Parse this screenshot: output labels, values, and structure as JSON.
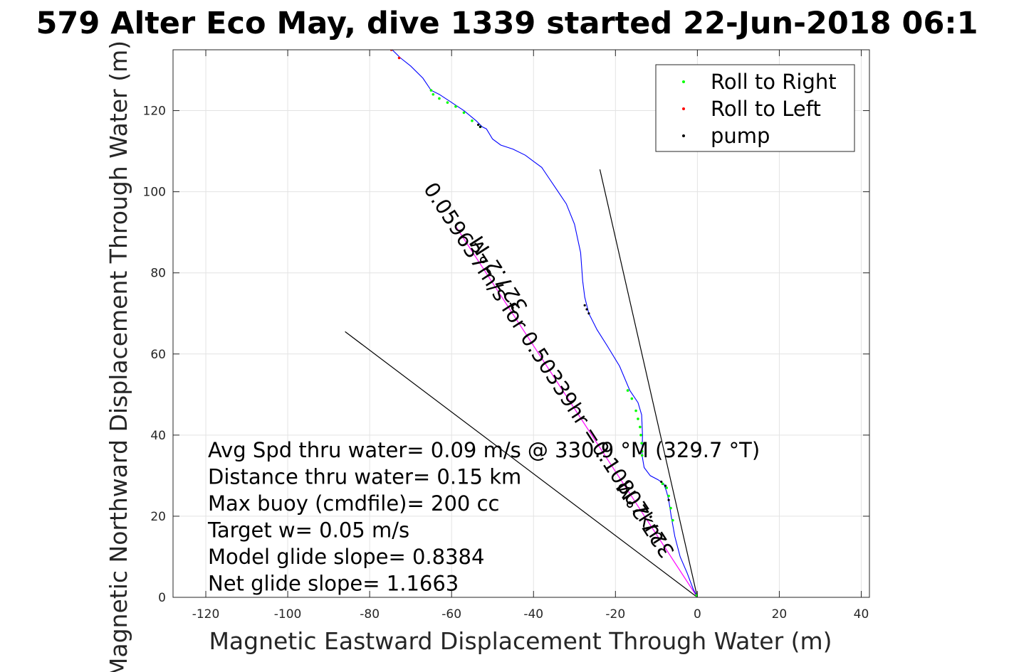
{
  "chart_data": {
    "type": "line",
    "title": "579 Alter Eco May, dive 1339 started 22-Jun-2018 06:1",
    "xlabel": "Magnetic Eastward Displacement Through Water (m)",
    "ylabel": "Magnetic Northward Displacement Through Water (m)",
    "xlim": [
      -128,
      42
    ],
    "ylim": [
      0,
      135
    ],
    "xticks": [
      -120,
      -100,
      -80,
      -60,
      -40,
      -20,
      0,
      20,
      40
    ],
    "yticks": [
      0,
      20,
      40,
      60,
      80,
      100,
      120
    ],
    "xtick_labels": [
      "-120",
      "-100",
      "-80",
      "-60",
      "-40",
      "-20",
      "0",
      "20",
      "40"
    ],
    "ytick_labels": [
      "0",
      "20",
      "40",
      "60",
      "80",
      "100",
      "120"
    ],
    "grid": true,
    "legend_position": "top-right",
    "legend": [
      {
        "label": "Roll to Right",
        "color": "#00ff00"
      },
      {
        "label": "Roll to Left",
        "color": "#ff0000"
      },
      {
        "label": "pump",
        "color": "#000000"
      }
    ],
    "track": {
      "color": "#0000ff",
      "x": [
        0,
        -1,
        -2.5,
        -4.2,
        -5.5,
        -6.4,
        -7,
        -7.5,
        -8.2,
        -9.6,
        -11.5,
        -13,
        -13.5,
        -13.4,
        -13.6,
        -14.5,
        -16.5,
        -19,
        -22,
        -24.5,
        -26.5,
        -27.5,
        -28,
        -28.5,
        -30,
        -32,
        -34,
        -36,
        -38,
        -40,
        -42,
        -45,
        -48,
        -50,
        -51.5,
        -52.5,
        -54,
        -57,
        -60,
        -63,
        -65,
        -67,
        -70,
        -72.5,
        -74.5
      ],
      "y": [
        0,
        2,
        6,
        10,
        15,
        20,
        24,
        26,
        28,
        29,
        30,
        32,
        35,
        40,
        45,
        48,
        51,
        57,
        62,
        66,
        70,
        74,
        78,
        85,
        92,
        97,
        100,
        103,
        106,
        107.5,
        109,
        110.5,
        111.5,
        113,
        115.5,
        116,
        117.5,
        120,
        122,
        124,
        125,
        128,
        131,
        133,
        135
      ]
    },
    "roll_right_points": {
      "x": [
        -53,
        -55,
        -57,
        -59,
        -61,
        -63,
        -64.5,
        -65,
        -17,
        -16,
        -15,
        -14.5,
        -14,
        -13.8,
        -13.6,
        -13.5,
        -13.5,
        -8.5,
        -7.5,
        -7,
        -6.5,
        -6,
        -0.2
      ],
      "y": [
        116,
        117.5,
        119.5,
        121,
        122,
        123,
        124,
        125,
        51,
        49,
        46,
        44,
        42,
        40,
        38,
        36,
        35,
        28,
        27,
        25,
        22,
        19,
        0.5
      ]
    },
    "roll_left_points": {
      "x": [
        -74.7,
        -72.8
      ],
      "y": [
        135,
        133
      ]
    },
    "pump_points": {
      "x": [
        -53,
        -53.5,
        -27.5,
        -27,
        -26.5,
        -8.8,
        -7.8,
        -7
      ],
      "y": [
        116,
        116.5,
        72,
        71,
        70,
        28.5,
        27.5,
        24
      ]
    },
    "glide_lines": [
      {
        "x": [
          0,
          -86
        ],
        "y": [
          0,
          65.5
        ],
        "color": "#000000"
      },
      {
        "x": [
          0,
          -23.8
        ],
        "y": [
          0,
          105.5
        ],
        "color": "#000000"
      }
    ],
    "avg_heading_line": {
      "x": [
        0,
        -59
      ],
      "y": [
        0,
        91.5
      ],
      "color": "#ff00ff"
    },
    "annotations": [
      "Avg Spd thru water=  0.09 m/s @ 330.9 °M (329.7 °T)",
      "Distance thru water=  0.15 km",
      "Max buoy (cmdfile)= 200 cc",
      "Target w= 0.05 m/s",
      "Model glide slope= 0.8384",
      "Net glide slope= 1.1663"
    ],
    "rotated_labels": [
      "0.059637m/s for 0.50339hr =0.10807km",
      "327.2°M",
      "327.2°M"
    ]
  }
}
